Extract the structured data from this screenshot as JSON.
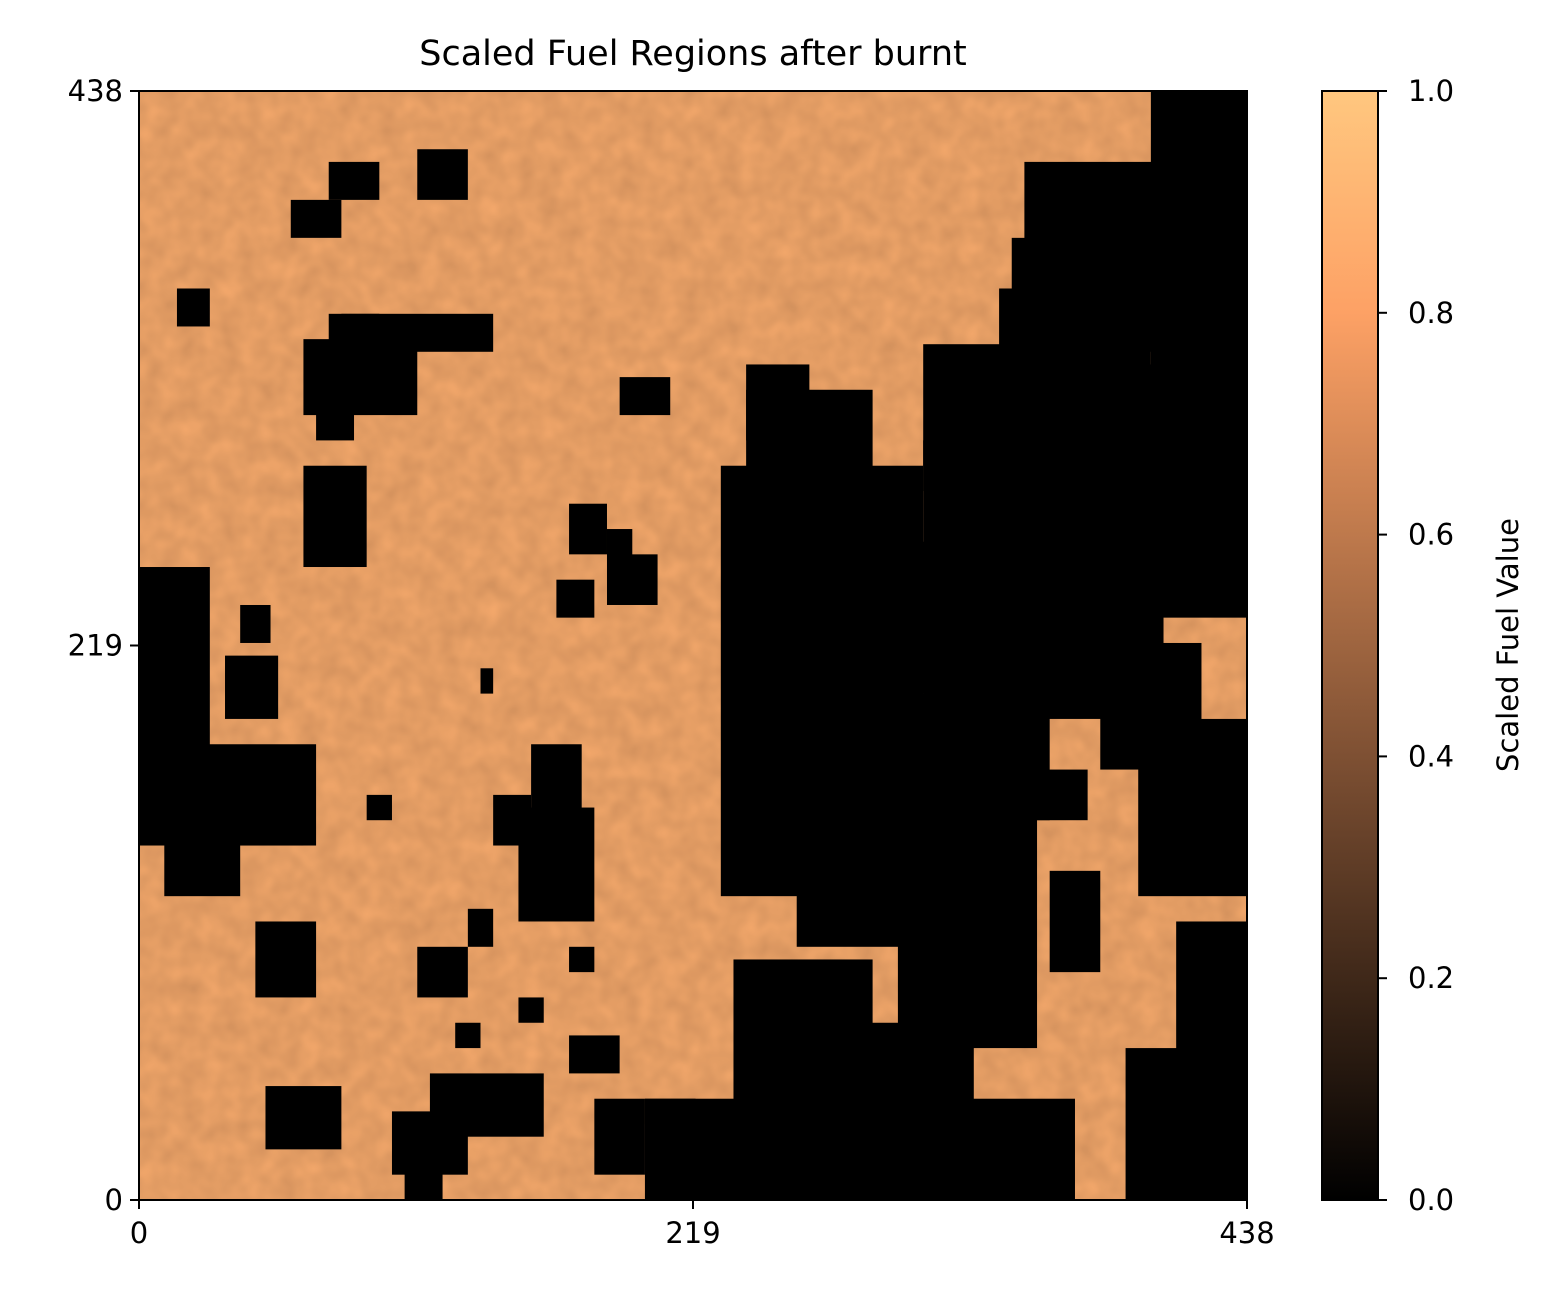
{
  "chart_data": {
    "type": "heatmap",
    "title": "Scaled Fuel Regions after burnt",
    "xlabel": "",
    "ylabel": "",
    "xlim": [
      0,
      438
    ],
    "ylim": [
      0,
      438
    ],
    "x_tick_labels": [
      "0",
      "219",
      "438"
    ],
    "y_tick_labels": [
      "0",
      "219",
      "438"
    ],
    "colorbar": {
      "label": "Scaled Fuel Value",
      "range": [
        0.0,
        1.0
      ],
      "tick_labels": [
        "0.0",
        "0.2",
        "0.4",
        "0.6",
        "0.8",
        "1.0"
      ],
      "colormap": "copper",
      "stops": [
        "#000000",
        "#3f2819",
        "#7e5033",
        "#be794c",
        "#fda165",
        "#ffc77f"
      ]
    },
    "grid": false,
    "description_of_values": "unburnt regions have scaled fuel values around 0.75-0.95 (light copper); burnt regions have value 0 (black); burnt area concentrated in the center-right and lower-right, with scattered patches elsewhere"
  }
}
